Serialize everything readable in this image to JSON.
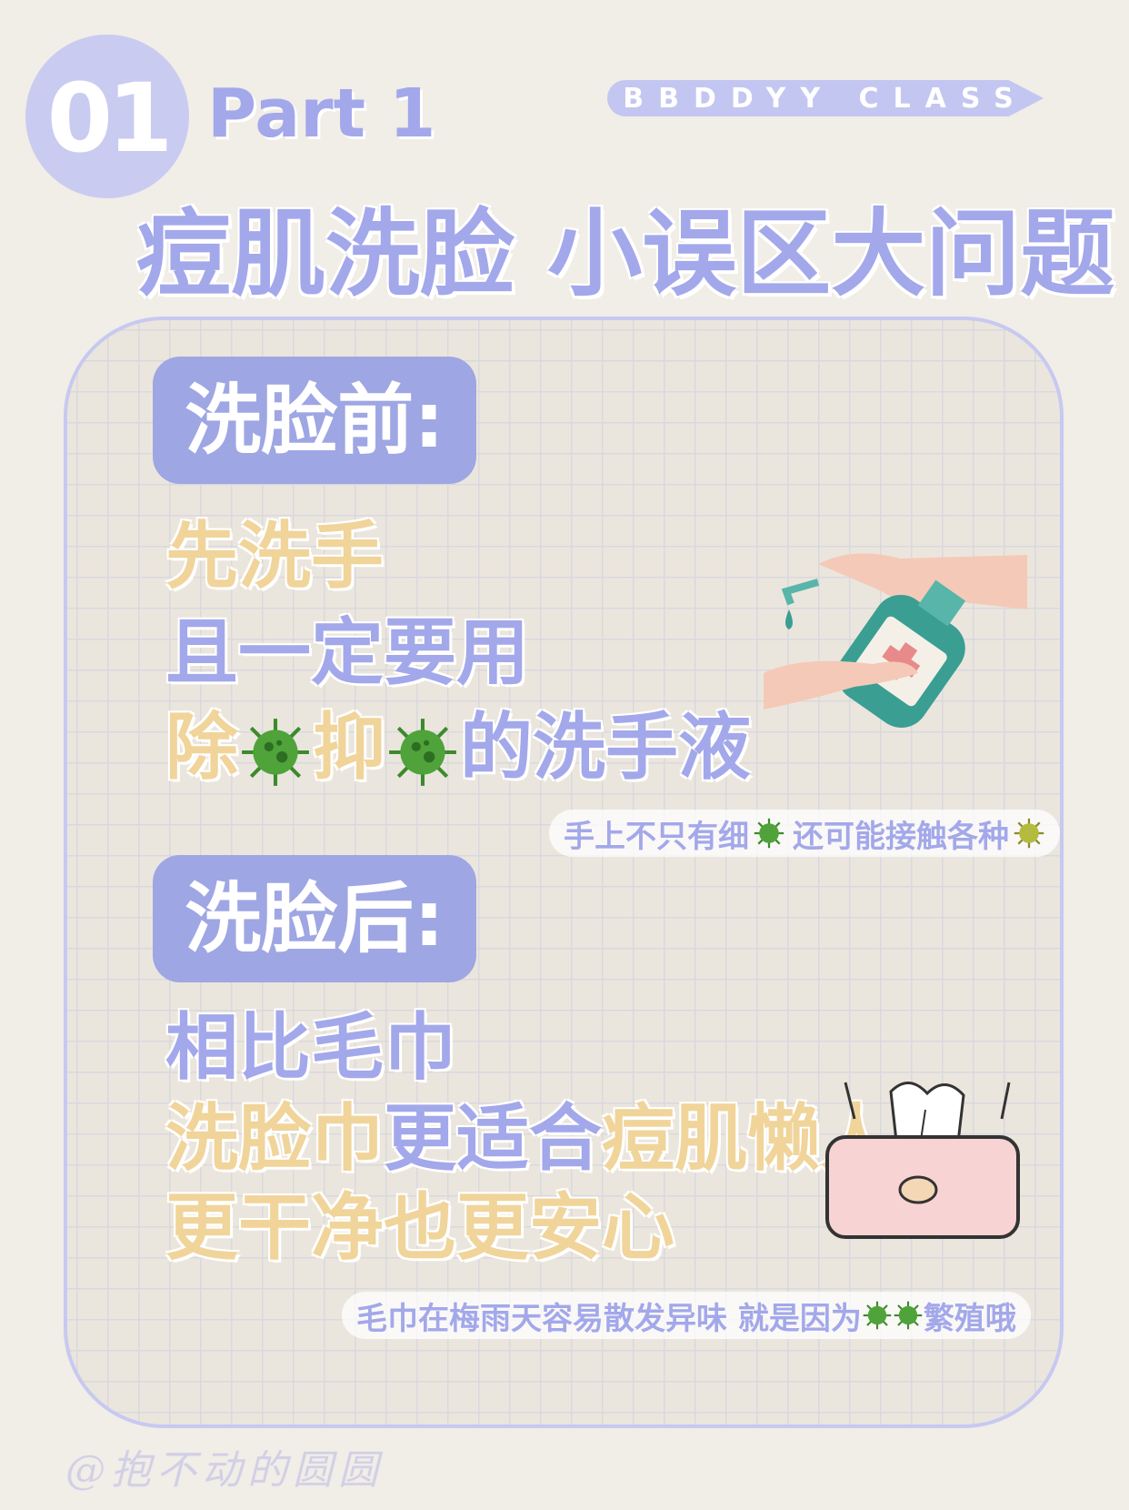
{
  "header": {
    "number": "01",
    "part": "Part 1",
    "brand": "BBDDYY CLASS",
    "title": "痘肌洗脸 小误区大问题"
  },
  "before": {
    "label": "洗脸前:",
    "line1": "先洗手",
    "line2": "且一定要用",
    "line3_a": "除",
    "line3_b": "抑",
    "line3_c": "的洗手液",
    "note_a": "手上不只有细",
    "note_b": "还可能接触各种"
  },
  "after": {
    "label": "洗脸后:",
    "line1": "相比毛巾",
    "line2_a": "洗脸巾",
    "line2_b": "更适合",
    "line2_c": "痘肌懒人",
    "line3": "更干净也更安心",
    "note_a": "毛巾在梅雨天容易散发异味 就是因为",
    "note_b": "繁殖哦"
  },
  "watermark": "@抱不动的圆圆",
  "colors": {
    "accent": "#a3a8ea",
    "label_bg": "#9ea6e3",
    "yellow": "#f0d49a",
    "background": "#f1ede7"
  },
  "icons": [
    "virus-icon",
    "hand-sanitizer-illustration",
    "tissue-box-illustration"
  ]
}
